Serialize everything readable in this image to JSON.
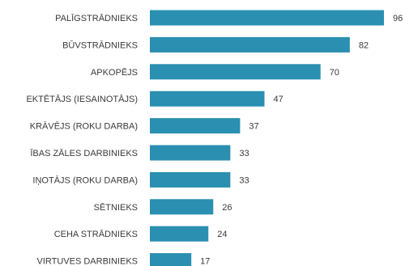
{
  "chart_data": {
    "type": "bar",
    "orientation": "horizontal",
    "categories": [
      "PALĪGSTRĀDNIEKS",
      "BŪVSTRĀDNIEKS",
      "APKOPĒJS",
      "EKTĒTĀJS (IESAINOTĀJS)",
      "KRĀVĒJS (ROKU DARBA)",
      "ĪBAS ZĀLES DARBINIEKS",
      "IŅOTĀJS (ROKU DARBA)",
      "SĒTNIEKS",
      "CEHA STRĀDNIEKS",
      "VIRTUVES DARBINIEKS"
    ],
    "values": [
      96,
      82,
      70,
      47,
      37,
      33,
      33,
      26,
      24,
      17
    ],
    "value_labels": [
      "96",
      "82",
      "70",
      "47",
      "37",
      "33",
      "33",
      "26",
      "24",
      "17"
    ],
    "xlim": [
      0,
      100
    ],
    "grid": false,
    "legend": "none",
    "bar_color": "#2a8fb0"
  }
}
